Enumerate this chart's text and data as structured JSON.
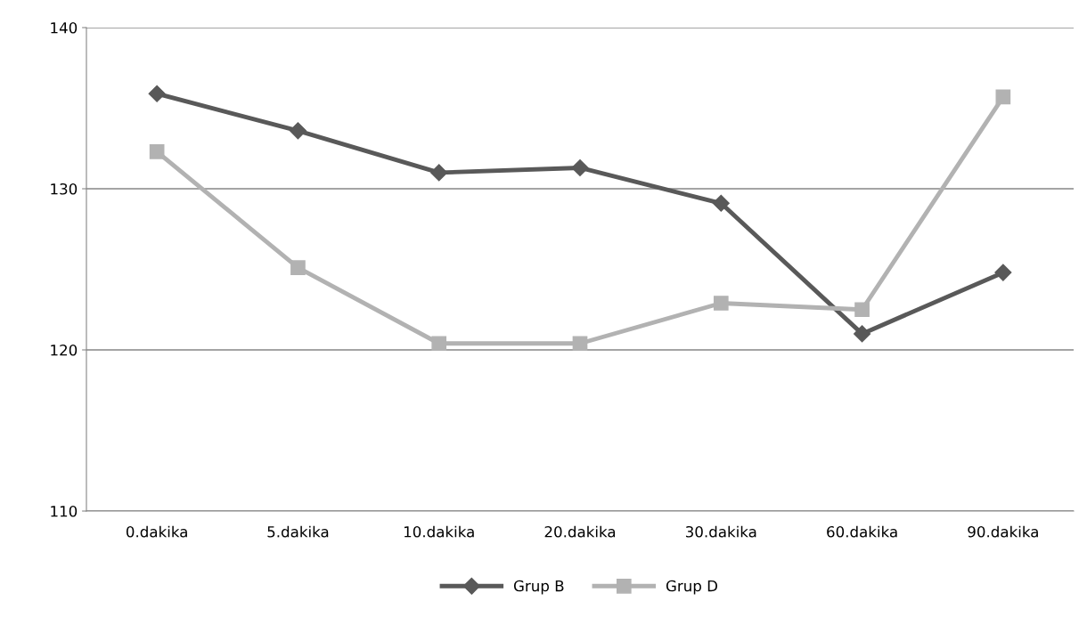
{
  "chart_data": {
    "type": "line",
    "categories": [
      "0.dakika",
      "5.dakika",
      "10.dakika",
      "20.dakika",
      "30.dakika",
      "60.dakika",
      "90.dakika"
    ],
    "series": [
      {
        "name": "Grup B",
        "color": "#595959",
        "marker": "diamond",
        "values": [
          135.9,
          133.6,
          131.0,
          131.3,
          129.1,
          121.0,
          124.8
        ]
      },
      {
        "name": "Grup D",
        "color": "#b2b2b2",
        "marker": "square",
        "values": [
          132.3,
          125.1,
          120.4,
          120.4,
          122.9,
          122.5,
          135.7
        ]
      }
    ],
    "ylim": [
      110,
      140
    ],
    "yticks": [
      110,
      120,
      130,
      140
    ],
    "grid": "y",
    "legend": "bottom",
    "line_style": "solid"
  }
}
